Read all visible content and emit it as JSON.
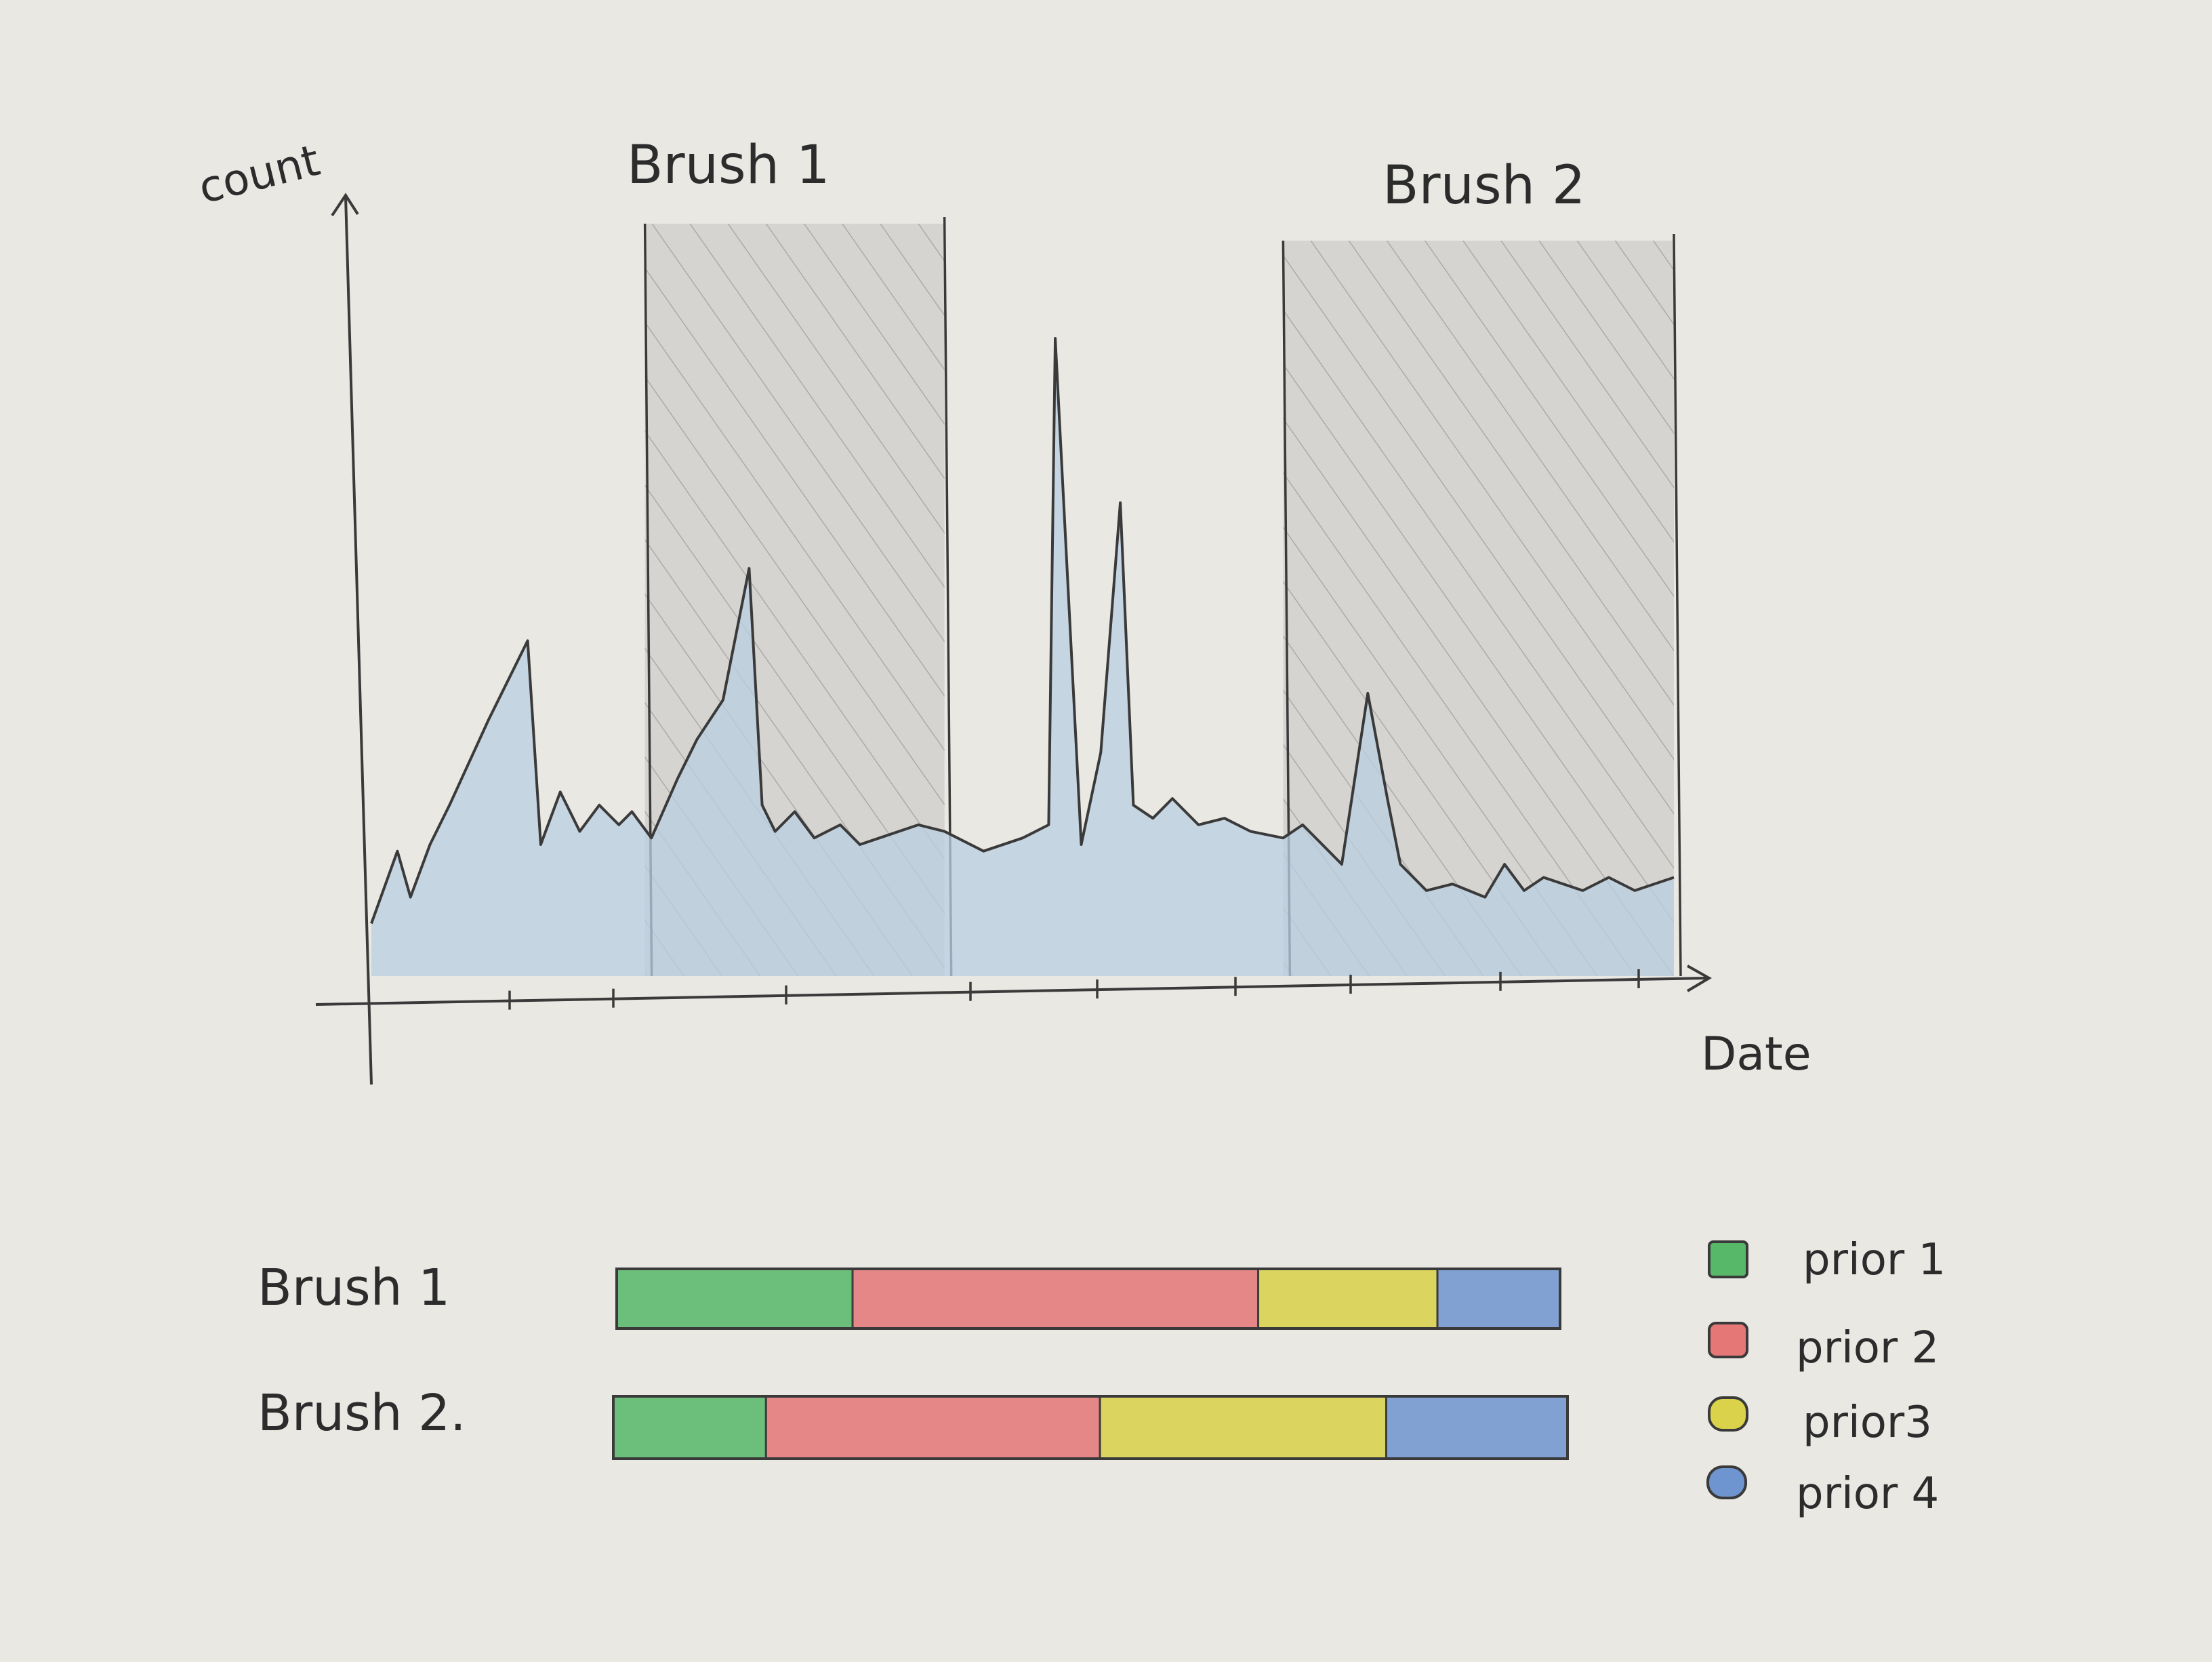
{
  "colors": {
    "paper": "#e9e8e3",
    "pencil": "#3a3a3a",
    "area_fill": "#b9cfe2",
    "brush_shade": "#bdbcb8",
    "prior1": "#57b86a",
    "prior2": "#e57777",
    "prior3": "#d9d24a",
    "prior4": "#6e95cf"
  },
  "timeline": {
    "y_axis_label": "count",
    "x_axis_label": "Date",
    "brushes": [
      {
        "label": "Brush 1",
        "start": 0.21,
        "end": 0.44
      },
      {
        "label": "Brush 2",
        "start": 0.7,
        "end": 1.0
      }
    ],
    "series": [
      [
        0.0,
        0.08
      ],
      [
        0.02,
        0.19
      ],
      [
        0.03,
        0.12
      ],
      [
        0.045,
        0.2
      ],
      [
        0.06,
        0.26
      ],
      [
        0.09,
        0.39
      ],
      [
        0.12,
        0.51
      ],
      [
        0.13,
        0.2
      ],
      [
        0.145,
        0.28
      ],
      [
        0.16,
        0.22
      ],
      [
        0.175,
        0.26
      ],
      [
        0.19,
        0.23
      ],
      [
        0.2,
        0.25
      ],
      [
        0.215,
        0.21
      ],
      [
        0.235,
        0.3
      ],
      [
        0.25,
        0.36
      ],
      [
        0.27,
        0.42
      ],
      [
        0.29,
        0.62
      ],
      [
        0.3,
        0.26
      ],
      [
        0.31,
        0.22
      ],
      [
        0.325,
        0.25
      ],
      [
        0.34,
        0.21
      ],
      [
        0.36,
        0.23
      ],
      [
        0.375,
        0.2
      ],
      [
        0.39,
        0.21
      ],
      [
        0.42,
        0.23
      ],
      [
        0.44,
        0.22
      ],
      [
        0.47,
        0.19
      ],
      [
        0.5,
        0.21
      ],
      [
        0.52,
        0.23
      ],
      [
        0.525,
        0.97
      ],
      [
        0.545,
        0.2
      ],
      [
        0.56,
        0.34
      ],
      [
        0.575,
        0.72
      ],
      [
        0.585,
        0.26
      ],
      [
        0.6,
        0.24
      ],
      [
        0.615,
        0.27
      ],
      [
        0.635,
        0.23
      ],
      [
        0.655,
        0.24
      ],
      [
        0.675,
        0.22
      ],
      [
        0.7,
        0.21
      ],
      [
        0.715,
        0.23
      ],
      [
        0.73,
        0.2
      ],
      [
        0.745,
        0.17
      ],
      [
        0.765,
        0.43
      ],
      [
        0.78,
        0.27
      ],
      [
        0.79,
        0.17
      ],
      [
        0.81,
        0.13
      ],
      [
        0.83,
        0.14
      ],
      [
        0.855,
        0.12
      ],
      [
        0.87,
        0.17
      ],
      [
        0.885,
        0.13
      ],
      [
        0.9,
        0.15
      ],
      [
        0.93,
        0.13
      ],
      [
        0.95,
        0.15
      ],
      [
        0.97,
        0.13
      ],
      [
        1.0,
        0.15
      ]
    ]
  },
  "bars": [
    {
      "label": "Brush 1",
      "segments": [
        0.25,
        0.43,
        0.19,
        0.13
      ]
    },
    {
      "label": "Brush 2.",
      "segments": [
        0.16,
        0.35,
        0.3,
        0.19
      ]
    }
  ],
  "legend": [
    {
      "label": "prior 1",
      "color": "#57b86a"
    },
    {
      "label": "prior 2",
      "color": "#e57777"
    },
    {
      "label": "prior3",
      "color": "#d9d24a"
    },
    {
      "label": "prior 4",
      "color": "#6e95cf"
    }
  ]
}
